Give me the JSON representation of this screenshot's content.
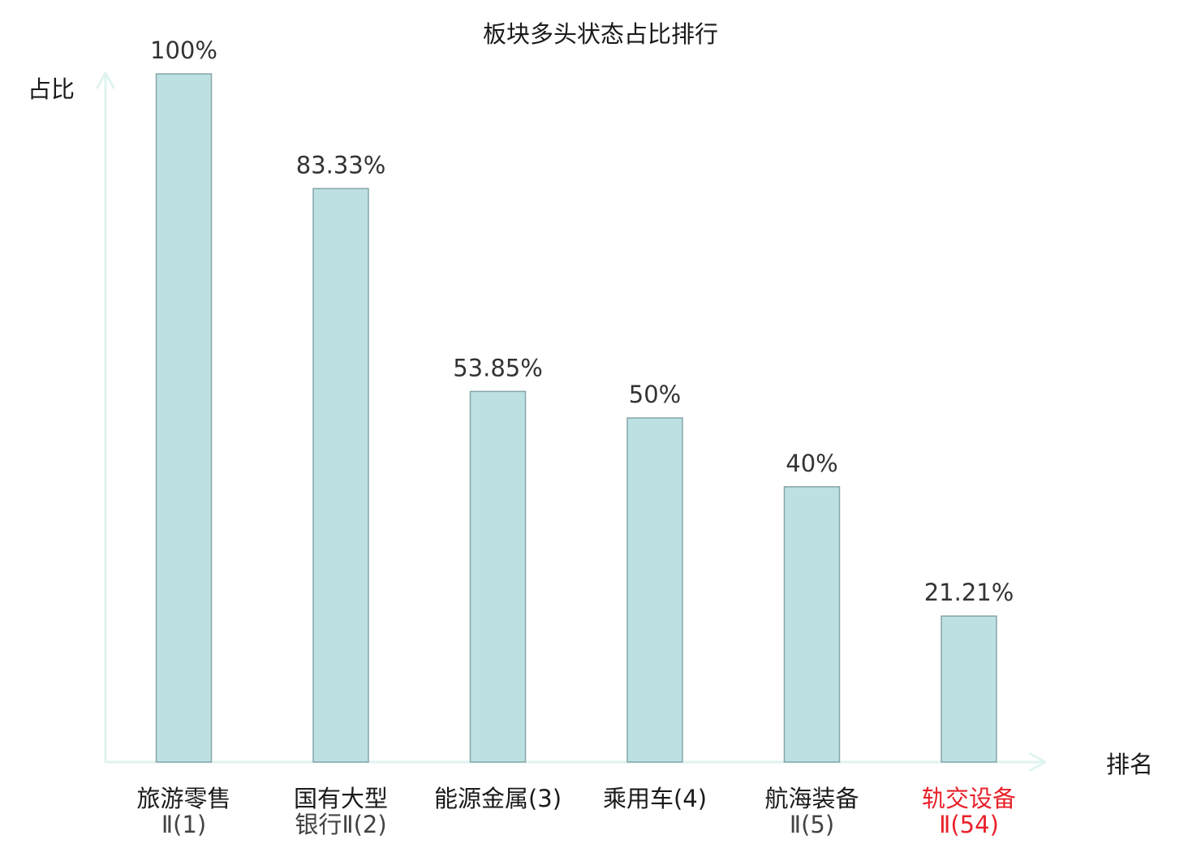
{
  "chart_data": {
    "type": "bar",
    "title": "板块多头状态占比排行",
    "ylabel": "占比",
    "xlabel": "排名",
    "ylim": [
      0,
      100
    ],
    "grid": false,
    "categories": [
      {
        "line1": "旅游零售",
        "line2": "Ⅱ(1)",
        "highlight": false
      },
      {
        "line1": "国有大型",
        "line2": "银行Ⅱ(2)",
        "highlight": false
      },
      {
        "line1": "能源金属(3)",
        "line2": "",
        "highlight": false
      },
      {
        "line1": "乘用车(4)",
        "line2": "",
        "highlight": false
      },
      {
        "line1": "航海装备",
        "line2": "Ⅱ(5)",
        "highlight": false
      },
      {
        "line1": "轨交设备",
        "line2": "Ⅱ(54)",
        "highlight": true
      }
    ],
    "values": [
      100,
      83.33,
      53.85,
      50,
      40,
      21.21
    ],
    "value_labels": [
      "100%",
      "83.33%",
      "53.85%",
      "50%",
      "40%",
      "21.21%"
    ],
    "colors": {
      "bar_fill": "#bde0e3",
      "bar_stroke": "#86a6a8",
      "axis": "#e0f3f0",
      "text": "#1a1a1a",
      "highlight": "#e8212a"
    }
  }
}
